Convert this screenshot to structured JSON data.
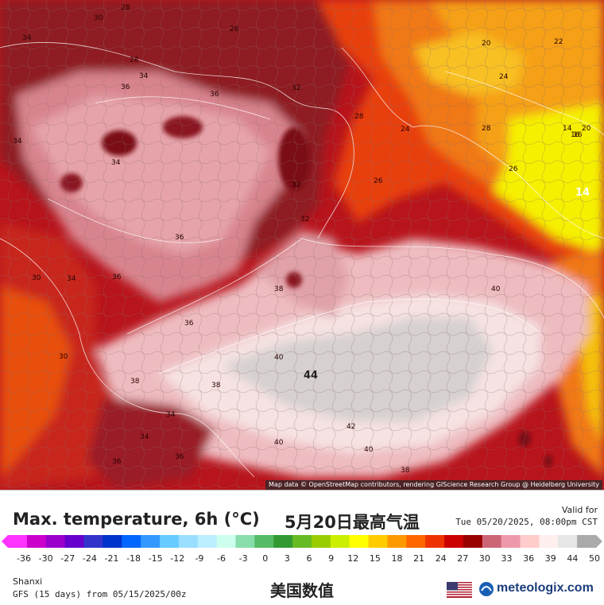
{
  "map": {
    "contour_labels": [
      "30",
      "28",
      "26",
      "20",
      "22",
      "34",
      "28",
      "36",
      "34",
      "32",
      "24",
      "28",
      "24",
      "16",
      "20",
      "34",
      "36",
      "28",
      "26",
      "14",
      "32",
      "26",
      "32",
      "16",
      "36",
      "34",
      "34",
      "36",
      "38",
      "40",
      "30",
      "36",
      "40",
      "38",
      "34",
      "38",
      "42",
      "36",
      "40",
      "40",
      "38",
      "30",
      "34",
      "36"
    ],
    "extremes": [
      "14",
      "44"
    ],
    "attribution": "Map data © OpenStreetMap contributors, rendering GIScience Research Group @ Heidelberg University",
    "colors": {
      "red_dark": "#7a0a14",
      "red": "#c81e14",
      "orange": "#f07814",
      "yellow": "#f5f000",
      "pink": "#e89aa0",
      "light_pink": "#f4d2d4",
      "white": "#f5eeee",
      "grey": "#c8c8c8"
    }
  },
  "legend": {
    "title_en": "Max. temperature, 6h (°C)",
    "title_cn": "5月20日最高气温",
    "valid_label": "Valid for",
    "valid_time": "Tue 05/20/2025, 08:00pm CST",
    "scale_ticks": [
      "-36",
      "-30",
      "-27",
      "-24",
      "-21",
      "-18",
      "-15",
      "-12",
      "-9",
      "-6",
      "-3",
      "0",
      "3",
      "6",
      "9",
      "12",
      "15",
      "18",
      "21",
      "24",
      "27",
      "30",
      "33",
      "36",
      "39",
      "44",
      "50"
    ],
    "scale_colors": [
      "#ff33ff",
      "#cc00cc",
      "#9900cc",
      "#6600cc",
      "#3333cc",
      "#0033cc",
      "#0066ff",
      "#3399ff",
      "#66ccff",
      "#99ddff",
      "#bbeeff",
      "#ccffee",
      "#88ddaa",
      "#55bb66",
      "#339933",
      "#66bb22",
      "#99cc00",
      "#ccee00",
      "#ffff00",
      "#ffcc00",
      "#ff9900",
      "#ff6600",
      "#ee3300",
      "#cc0000",
      "#990000",
      "#cc6677",
      "#ee99aa",
      "#ffcccc",
      "#ffeeee",
      "#e6e6e6",
      "#aaaaaa"
    ],
    "region": "Shanxi",
    "model": "GFS (15 days) from 05/15/2025/00z",
    "subtitle_cn": "美国数值",
    "logo": "meteologix.com"
  }
}
